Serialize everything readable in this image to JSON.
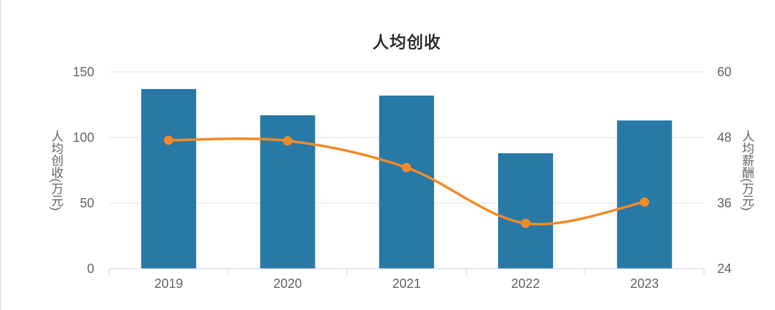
{
  "chart_data": {
    "type": "combo-bar-line",
    "title": "人均创收",
    "categories": [
      "2019",
      "2020",
      "2021",
      "2022",
      "2023"
    ],
    "series": [
      {
        "name": "人均创收",
        "type": "bar",
        "y_axis": "left",
        "color": "#2979A7",
        "values": [
          137,
          117,
          132,
          88,
          113
        ]
      },
      {
        "name": "人均薪酬",
        "type": "line",
        "y_axis": "right",
        "color": "#F68A25",
        "smooth": true,
        "markers": true,
        "values": [
          47.5,
          47.4,
          42.5,
          32.3,
          36.2
        ]
      }
    ],
    "y_axis_left": {
      "title": "人均创收(万元)",
      "min": 0,
      "max": 150,
      "ticks": [
        0,
        50,
        100,
        150
      ]
    },
    "y_axis_right": {
      "title": "人均薪酬(万元)",
      "min": 24,
      "max": 60,
      "ticks": [
        24,
        36,
        48,
        60
      ]
    },
    "x_axis": {
      "labels": [
        "2019",
        "2020",
        "2021",
        "2022",
        "2023"
      ]
    },
    "legend": "none",
    "grid": {
      "show": true,
      "color": "#e6e6e6"
    },
    "axis_line_color": "#ccd6eb",
    "label_color": "#666666",
    "title_color": "#333333",
    "background_color": "#ffffff"
  }
}
